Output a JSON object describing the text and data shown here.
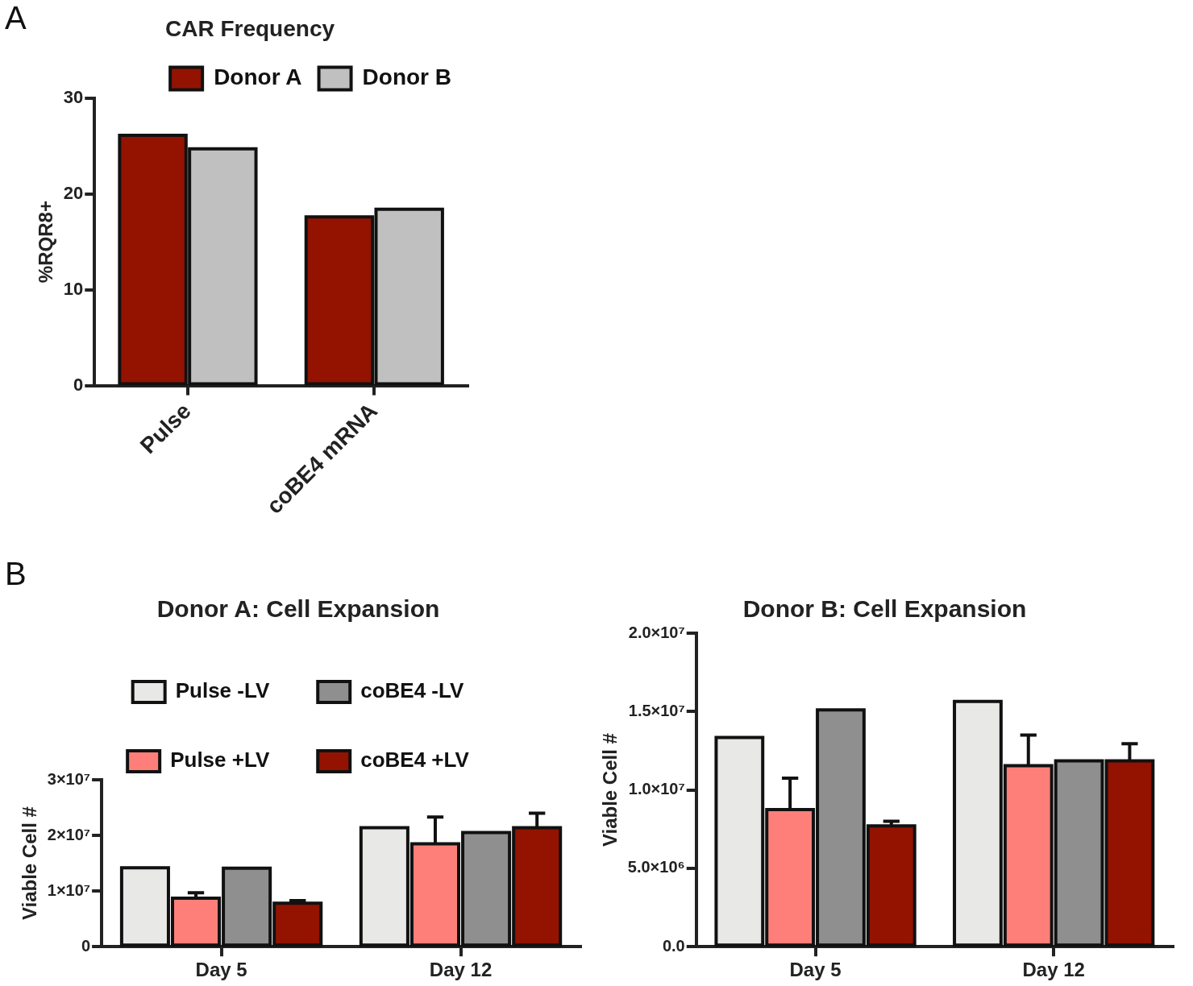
{
  "chart_data": [
    {
      "type": "bar",
      "title": "CAR Frequency",
      "ylabel": "%RQR8+",
      "categories": [
        "Pulse",
        "coBE4 mRNA"
      ],
      "series": [
        {
          "name": "Donor A",
          "color": "#931300",
          "values": [
            26.1,
            17.6
          ]
        },
        {
          "name": "Donor B",
          "color": "#c0c0c0",
          "values": [
            24.7,
            18.4
          ]
        }
      ],
      "ylim": [
        0,
        30
      ],
      "yticks": [
        0,
        10,
        20,
        30
      ],
      "legend": "top right",
      "annotations": [
        "A"
      ]
    },
    {
      "type": "bar",
      "title": "Donor A: Cell Expansion",
      "ylabel": "Viable Cell #",
      "categories": [
        "Day 5",
        "Day 12"
      ],
      "series": [
        {
          "name": "Pulse -LV",
          "color": "#e8e8e6",
          "values": [
            14200000,
            21400000
          ]
        },
        {
          "name": "Pulse +LV",
          "color": "#fe7f7a",
          "values": [
            8700000,
            18500000
          ],
          "errors": [
            1000000,
            4800000
          ]
        },
        {
          "name": "coBE4 -LV",
          "color": "#8f8f8f",
          "values": [
            14100000,
            20500000
          ]
        },
        {
          "name": "coBE4 +LV",
          "color": "#931300",
          "values": [
            7800000,
            21400000
          ],
          "errors": [
            500000,
            2600000
          ]
        }
      ],
      "ylim": [
        0,
        30000000
      ],
      "yticks": [
        0,
        {
          "value": 10000000,
          "label": "1×10⁷"
        },
        {
          "value": 20000000,
          "label": "2×10⁷"
        },
        {
          "value": 30000000,
          "label": "3×10⁷"
        }
      ],
      "legend": "top",
      "annotations": [
        "B"
      ]
    },
    {
      "type": "bar",
      "title": "Donor B: Cell Expansion",
      "ylabel": "Viable Cell #",
      "categories": [
        "Day 5",
        "Day 12"
      ],
      "series": [
        {
          "color": "#e8e8e6",
          "values": [
            13350000,
            15650000
          ]
        },
        {
          "color": "#fe7f7a",
          "values": [
            8750000,
            11550000
          ],
          "errors": [
            2000000,
            1950000
          ]
        },
        {
          "color": "#8f8f8f",
          "values": [
            15100000,
            11850000
          ]
        },
        {
          "color": "#931300",
          "values": [
            7700000,
            11850000
          ],
          "errors": [
            300000,
            1100000
          ]
        }
      ],
      "ylim": [
        0,
        20000000
      ],
      "yticks": [
        {
          "value": 0,
          "label": "0.0"
        },
        {
          "value": 5000000,
          "label": "5.0×10⁶"
        },
        {
          "value": 10000000,
          "label": "1.0×10⁷"
        },
        {
          "value": 15000000,
          "label": "1.5×10⁷"
        },
        {
          "value": 20000000,
          "label": "2.0×10⁷"
        }
      ]
    }
  ]
}
